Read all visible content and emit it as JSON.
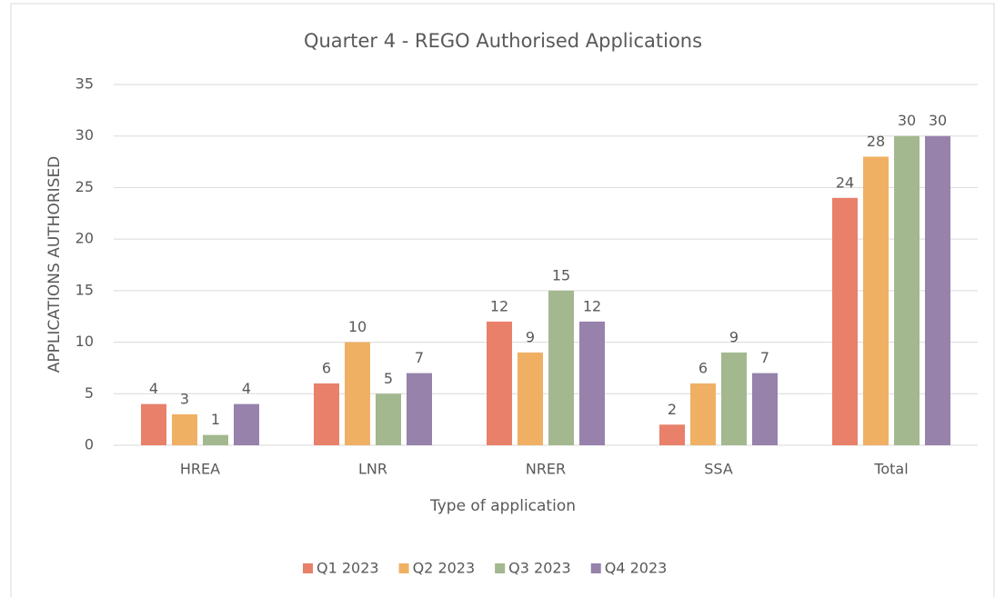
{
  "chart_data": {
    "type": "bar",
    "title": "Quarter 4 - REGO Authorised Applications",
    "x_label": "Type of application",
    "y_label": "APPLICATIONS AUTHORISED",
    "categories": [
      "HREA",
      "LNR",
      "NRER",
      "SSA",
      "Total"
    ],
    "series": [
      {
        "name": "Q1 2023",
        "color": "#e8806a",
        "values": [
          4,
          6,
          12,
          2,
          24
        ]
      },
      {
        "name": "Q2 2023",
        "color": "#f0b064",
        "values": [
          3,
          10,
          9,
          6,
          28
        ]
      },
      {
        "name": "Q3 2023",
        "color": "#a3b88f",
        "values": [
          1,
          5,
          15,
          9,
          30
        ]
      },
      {
        "name": "Q4 2023",
        "color": "#9682ab",
        "values": [
          4,
          7,
          12,
          7,
          30
        ]
      }
    ],
    "ylim": [
      0,
      35
    ],
    "yticks": [
      0,
      5,
      10,
      15,
      20,
      25,
      30,
      35
    ],
    "grid": true,
    "legend": "bottom"
  }
}
